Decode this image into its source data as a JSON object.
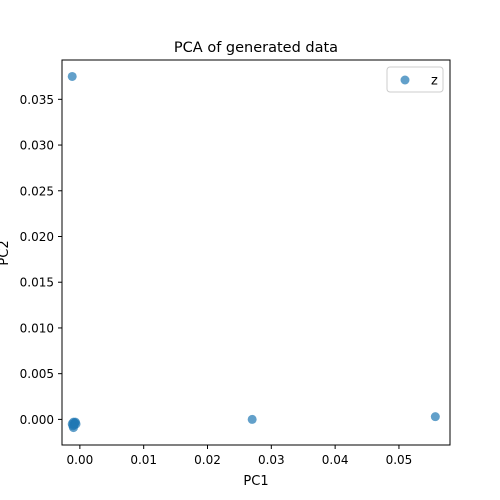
{
  "chart_data": {
    "type": "scatter",
    "title": "PCA of generated data",
    "xlabel": "PC1",
    "ylabel": "PC2",
    "xlim": [
      -0.0028,
      0.058
    ],
    "ylim": [
      -0.0028,
      0.0393
    ],
    "x_ticks": [
      0.0,
      0.01,
      0.02,
      0.03,
      0.04,
      0.05
    ],
    "x_tick_labels": [
      "0.00",
      "0.01",
      "0.02",
      "0.03",
      "0.04",
      "0.05"
    ],
    "y_ticks": [
      0.0,
      0.005,
      0.01,
      0.015,
      0.02,
      0.025,
      0.03,
      0.035
    ],
    "y_tick_labels": [
      "0.000",
      "0.005",
      "0.010",
      "0.015",
      "0.020",
      "0.025",
      "0.030",
      "0.035"
    ],
    "grid": false,
    "legend_position": "top-right",
    "series": [
      {
        "name": "z",
        "color": "#1f77b4",
        "points": [
          {
            "x": -0.0012,
            "y": 0.0375
          },
          {
            "x": 0.027,
            "y": 0.0
          },
          {
            "x": 0.0557,
            "y": 0.0003
          },
          {
            "x": -0.001,
            "y": -0.0003
          },
          {
            "x": -0.0008,
            "y": -0.0004
          },
          {
            "x": -0.0012,
            "y": -0.0005
          },
          {
            "x": -0.0009,
            "y": -0.0006
          },
          {
            "x": -0.0011,
            "y": -0.0007
          },
          {
            "x": -0.0007,
            "y": -0.0003
          },
          {
            "x": -0.001,
            "y": -0.0009
          },
          {
            "x": -0.0006,
            "y": -0.0005
          }
        ]
      }
    ]
  }
}
